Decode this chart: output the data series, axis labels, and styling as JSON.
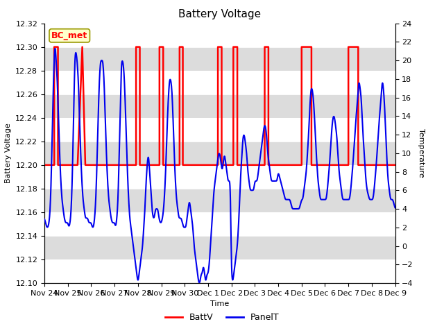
{
  "title": "Battery Voltage",
  "xlabel": "Time",
  "ylabel_left": "Battery Voltage",
  "ylabel_right": "Temperature",
  "left_ylim": [
    12.1,
    12.32
  ],
  "right_ylim": [
    -4,
    24
  ],
  "left_yticks": [
    12.1,
    12.12,
    12.14,
    12.16,
    12.18,
    12.2,
    12.22,
    12.24,
    12.26,
    12.28,
    12.3,
    12.32
  ],
  "right_yticks": [
    -4,
    -2,
    0,
    2,
    4,
    6,
    8,
    10,
    12,
    14,
    16,
    18,
    20,
    22,
    24
  ],
  "batt_color": "#FF0000",
  "panel_color": "#0000EE",
  "background_color": "#FFFFFF",
  "stripe_color": "#DCDCDC",
  "label_box_text": "BC_met",
  "label_box_facecolor": "#FFFFCC",
  "label_box_edgecolor": "#999900",
  "legend_entries": [
    "BattV",
    "PanelT"
  ],
  "title_fontsize": 11,
  "axis_label_fontsize": 8,
  "tick_fontsize": 8,
  "xtick_positions": [
    0,
    1,
    2,
    3,
    4,
    5,
    6,
    7,
    8,
    9,
    10,
    11,
    12,
    13,
    14,
    15
  ],
  "xtick_labels": [
    "Nov 24",
    "Nov 25",
    "Nov 26",
    "Nov 27",
    "Nov 28",
    "Nov 29",
    "Nov 30",
    "Dec 1",
    "Dec 2",
    "Dec 3",
    "Dec 4",
    "Dec 5",
    "Dec 6",
    "Dec 7",
    "Dec 8",
    "Dec 9"
  ],
  "batt_x": [
    0.0,
    0.42,
    0.42,
    0.58,
    0.58,
    0.92,
    0.92,
    1.42,
    1.42,
    1.62,
    1.62,
    1.75,
    1.75,
    2.5,
    2.5,
    3.92,
    3.92,
    4.08,
    4.08,
    4.92,
    4.92,
    5.08,
    5.08,
    5.78,
    5.78,
    5.92,
    5.92,
    6.7,
    6.7,
    7.42,
    7.42,
    7.58,
    7.58,
    8.08,
    8.08,
    8.25,
    8.25,
    8.92,
    8.92,
    9.42,
    9.42,
    9.58,
    9.58,
    11.0,
    11.0,
    11.42,
    11.42,
    11.58,
    11.58,
    13.0,
    13.0,
    13.42,
    13.42,
    13.58,
    13.58,
    15.0
  ],
  "batt_y": [
    12.2,
    12.2,
    12.3,
    12.3,
    12.2,
    12.2,
    12.2,
    12.2,
    12.2,
    12.3,
    12.3,
    12.2,
    12.2,
    12.2,
    12.2,
    12.2,
    12.3,
    12.3,
    12.2,
    12.2,
    12.3,
    12.3,
    12.2,
    12.2,
    12.3,
    12.3,
    12.2,
    12.2,
    12.2,
    12.2,
    12.3,
    12.3,
    12.2,
    12.2,
    12.3,
    12.3,
    12.2,
    12.2,
    12.2,
    12.2,
    12.3,
    12.3,
    12.2,
    12.2,
    12.3,
    12.3,
    12.2,
    12.2,
    12.2,
    12.2,
    12.3,
    12.3,
    12.2,
    12.2,
    12.2,
    12.2
  ]
}
